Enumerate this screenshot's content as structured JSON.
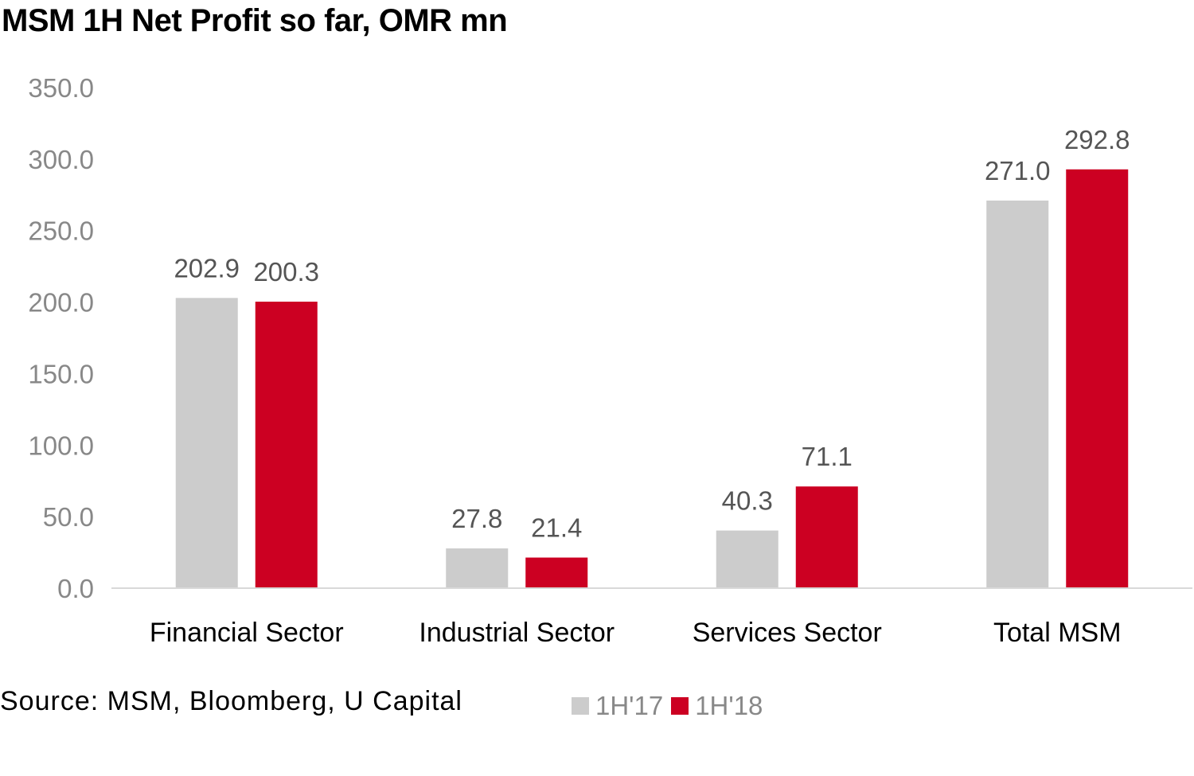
{
  "chart_data": {
    "type": "bar",
    "title": "MSM 1H Net Profit so far, OMR mn",
    "categories": [
      "Financial Sector",
      "Industrial Sector",
      "Services Sector",
      "Total MSM"
    ],
    "series": [
      {
        "name": "1H'17",
        "color": "#cccccc",
        "values": [
          202.9,
          27.8,
          40.3,
          271.0
        ]
      },
      {
        "name": "1H'18",
        "color": "#cc0022",
        "values": [
          200.3,
          21.4,
          71.1,
          292.8
        ]
      }
    ],
    "ylim": [
      0,
      350
    ],
    "yticks": [
      0,
      50,
      100,
      150,
      200,
      250,
      300,
      350
    ],
    "grid": false,
    "legend": "bottom"
  },
  "source": "Source: MSM, Bloomberg, U Capital"
}
